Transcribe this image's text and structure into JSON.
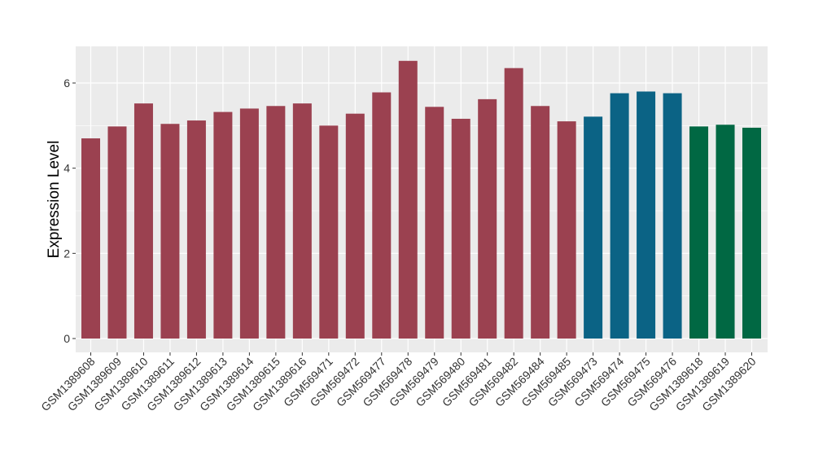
{
  "chart_data": {
    "type": "bar",
    "title": "",
    "xlabel": "",
    "ylabel": "Expression Level",
    "ylim": [
      0,
      6.8
    ],
    "y_ticks": [
      0,
      2,
      4,
      6
    ],
    "grid": true,
    "legend": "none",
    "categories": [
      "GSM1389608",
      "GSM1389609",
      "GSM1389610",
      "GSM1389611",
      "GSM1389612",
      "GSM1389613",
      "GSM1389614",
      "GSM1389615",
      "GSM1389616",
      "GSM569471",
      "GSM569472",
      "GSM569477",
      "GSM569478",
      "GSM569479",
      "GSM569480",
      "GSM569481",
      "GSM569482",
      "GSM569484",
      "GSM569485",
      "GSM569473",
      "GSM569474",
      "GSM569475",
      "GSM569476",
      "GSM1389618",
      "GSM1389619",
      "GSM1389620"
    ],
    "values": [
      4.7,
      4.98,
      5.52,
      5.04,
      5.12,
      5.32,
      5.4,
      5.46,
      5.52,
      5.0,
      5.28,
      5.78,
      6.52,
      5.44,
      5.16,
      5.62,
      6.35,
      5.46,
      5.1,
      5.21,
      5.76,
      5.8,
      5.76,
      4.98,
      5.02,
      4.95
    ],
    "groups": [
      0,
      0,
      0,
      0,
      0,
      0,
      0,
      0,
      0,
      0,
      0,
      0,
      0,
      0,
      0,
      0,
      0,
      0,
      0,
      1,
      1,
      1,
      1,
      2,
      2,
      2
    ],
    "colors": [
      "#9b4150",
      "#0b6385",
      "#016843"
    ],
    "panel_background": "#ebebeb",
    "gridline_color": "#ffffff"
  }
}
